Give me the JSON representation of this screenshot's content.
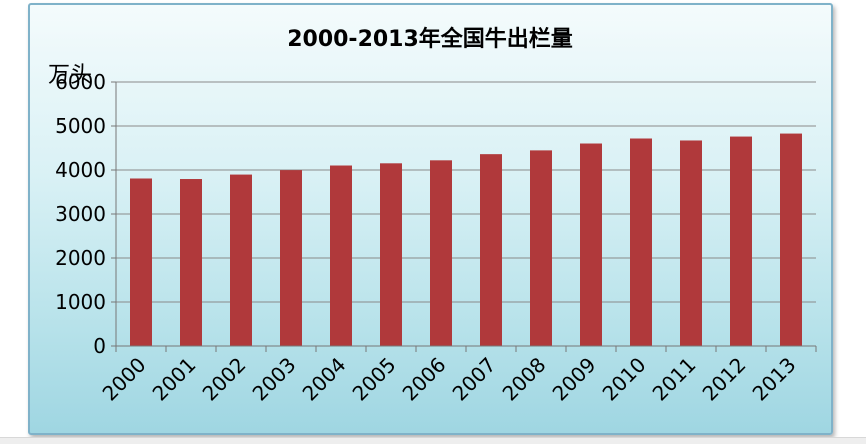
{
  "chart_data": {
    "type": "bar",
    "title": "2000-2013年全国牛出栏量",
    "ylabel": "万头",
    "xlabel": "",
    "categories": [
      "2000",
      "2001",
      "2002",
      "2003",
      "2004",
      "2005",
      "2006",
      "2007",
      "2008",
      "2009",
      "2010",
      "2011",
      "2012",
      "2013"
    ],
    "values": [
      3807,
      3795,
      3896,
      3997,
      4102,
      4152,
      4220,
      4360,
      4446,
      4602,
      4716,
      4671,
      4760,
      4828
    ],
    "ylim": [
      0,
      6000
    ],
    "yticks": [
      "0",
      "1000",
      "2000",
      "3000",
      "4000",
      "5000",
      "6000"
    ],
    "grid": true,
    "legend": "none",
    "bar_color": "#b0393b"
  }
}
